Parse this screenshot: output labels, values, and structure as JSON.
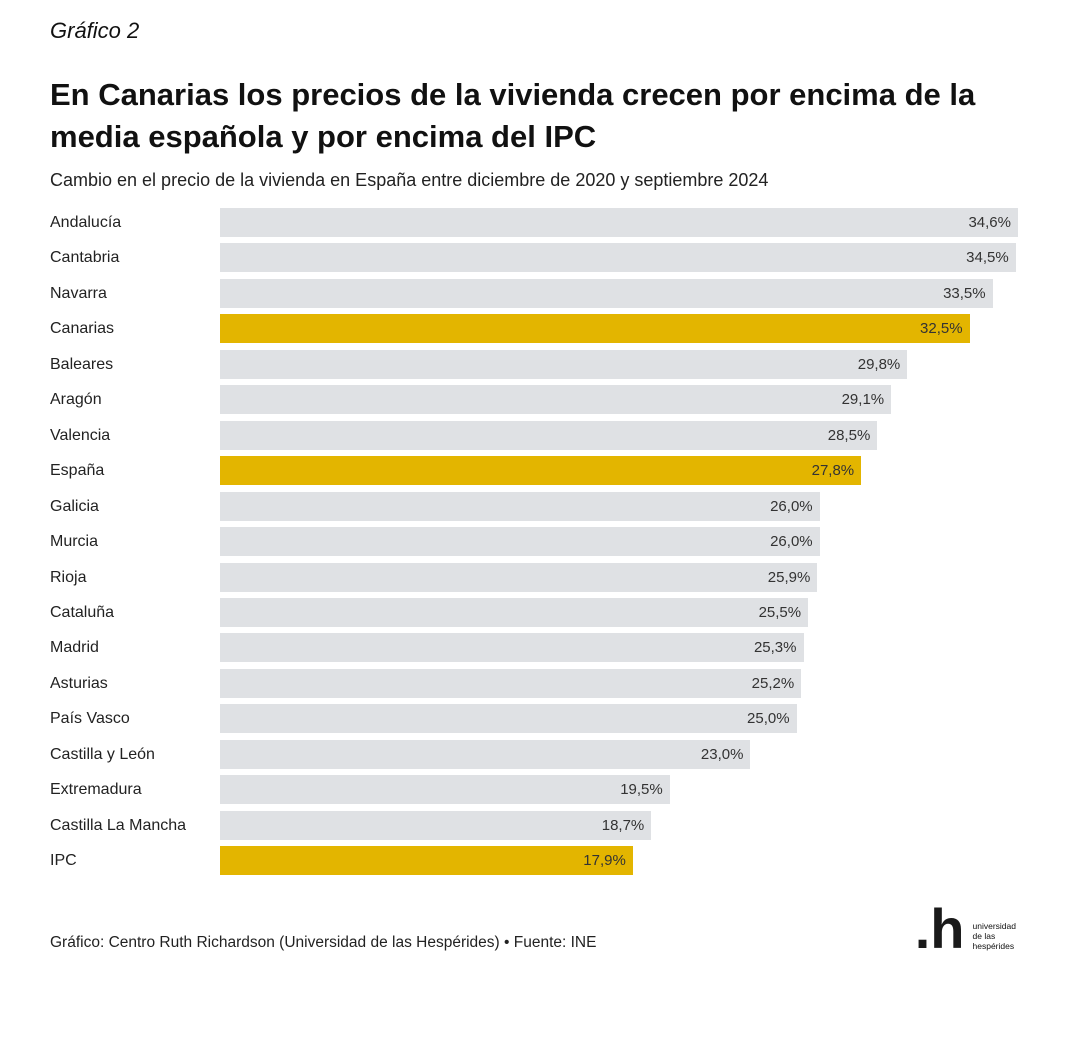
{
  "kicker": "Gráfico 2",
  "logo": {
    "mark": ".h",
    "line1": "universidad",
    "line2": "de las",
    "line3": "hespérides"
  },
  "source": "Gráfico: Centro Ruth Richardson (Universidad de las Hespérides) • Fuente: INE",
  "colors": {
    "default": "#dfe1e4",
    "highlight": "#e3b500"
  },
  "chart_data": {
    "type": "bar",
    "orientation": "horizontal",
    "title": "En Canarias los precios de la vivienda crecen por encima de la media española y por encima del IPC",
    "subtitle": "Cambio en el precio de la vivienda en España entre diciembre de 2020 y septiembre 2024",
    "xlabel": "",
    "ylabel": "",
    "xlim": [
      0,
      34.6
    ],
    "grid": false,
    "categories": [
      "Andalucía",
      "Cantabria",
      "Navarra",
      "Canarias",
      "Baleares",
      "Aragón",
      "Valencia",
      "España",
      "Galicia",
      "Murcia",
      "Rioja",
      "Cataluña",
      "Madrid",
      "Asturias",
      "País Vasco",
      "Castilla y León",
      "Extremadura",
      "Castilla La Mancha",
      "IPC"
    ],
    "values": [
      34.6,
      34.5,
      33.5,
      32.5,
      29.8,
      29.1,
      28.5,
      27.8,
      26.0,
      26.0,
      25.9,
      25.5,
      25.3,
      25.2,
      25.0,
      23.0,
      19.5,
      18.7,
      17.9
    ],
    "value_labels": [
      "34,6%",
      "34,5%",
      "33,5%",
      "32,5%",
      "29,8%",
      "29,1%",
      "28,5%",
      "27,8%",
      "26,0%",
      "26,0%",
      "25,9%",
      "25,5%",
      "25,3%",
      "25,2%",
      "25,0%",
      "23,0%",
      "19,5%",
      "18,7%",
      "17,9%"
    ],
    "highlighted": [
      "Canarias",
      "España",
      "IPC"
    ]
  }
}
